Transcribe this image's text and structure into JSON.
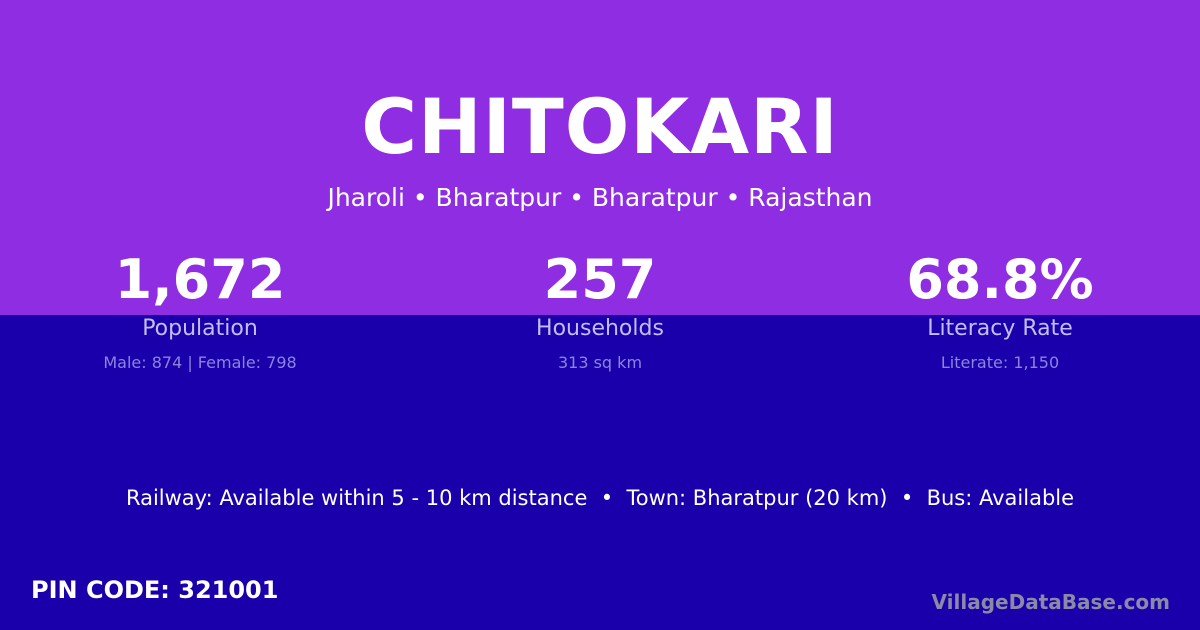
{
  "title": "CHITOKARI",
  "location": "Jharoli • Bharatpur • Bharatpur • Rajasthan",
  "stats": [
    {
      "value": "1,672",
      "label": "Population",
      "detail": "Male: 874 | Female: 798"
    },
    {
      "value": "257",
      "label": "Households",
      "detail": "313 sq km"
    },
    {
      "value": "68.8%",
      "label": "Literacy Rate",
      "detail": "Literate: 1,150"
    }
  ],
  "info": "Railway: Available within 5 - 10 km distance  •  Town: Bharatpur (20 km)  •  Bus: Available",
  "pin": "PIN CODE: 321001",
  "brand": "VillageDataBase.com",
  "colors": {
    "top": "#8e2de2",
    "bottom": "#1a00aa"
  }
}
